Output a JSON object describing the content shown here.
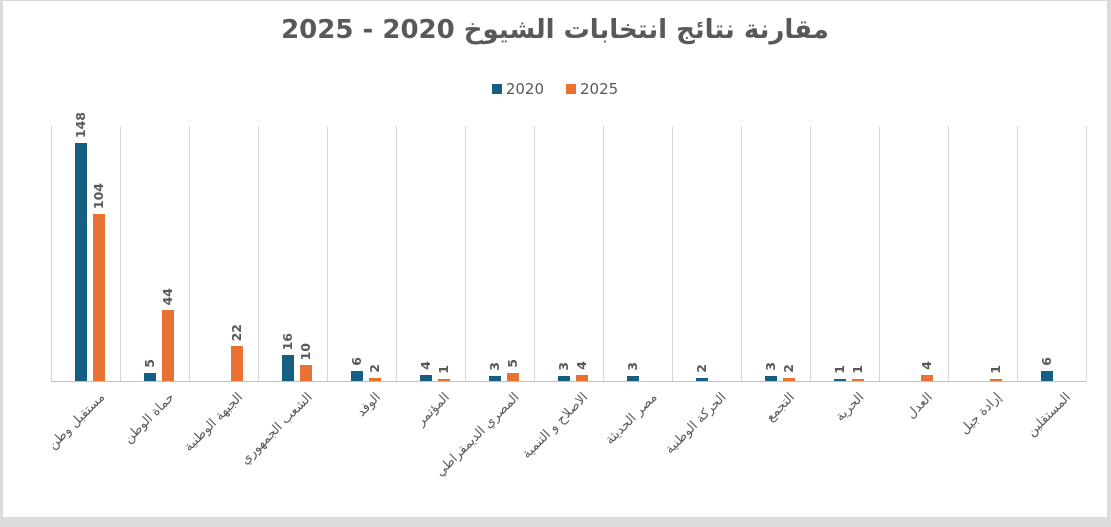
{
  "page": {
    "background_color": "#dcdcdc",
    "chart_border_color": "#d9d9d9",
    "chart_background_color": "#ffffff"
  },
  "title": {
    "text": "مقارنة نتائج انتخابات الشيوخ 2020 - 2025",
    "color": "#595959"
  },
  "legend": {
    "items": [
      {
        "label": "2020",
        "color": "#156082"
      },
      {
        "label": "2025",
        "color": "#E97132"
      }
    ],
    "position": "top-center"
  },
  "chart_data": {
    "type": "bar",
    "title": "مقارنة نتائج انتخابات الشيوخ 2020 - 2025",
    "categories": [
      "مستقبل وطن",
      "حماة الوطن",
      "الجبهة الوطنية",
      "الشعب الجمهوري",
      "الوفد",
      "المؤتمر",
      "المصري الديمقراطي",
      "الاصلاح و التنمية",
      "مصر الحديثة",
      "الحركة الوطنية",
      "التجمع",
      "الحرية",
      "العدل",
      "إرادة جيل",
      "المستقلين"
    ],
    "series": [
      {
        "name": "2020",
        "color": "#156082",
        "values": [
          148,
          5,
          0,
          16,
          6,
          4,
          3,
          3,
          3,
          2,
          3,
          1,
          0,
          0,
          6
        ]
      },
      {
        "name": "2025",
        "color": "#E97132",
        "values": [
          104,
          44,
          22,
          10,
          2,
          1,
          5,
          4,
          0,
          0,
          2,
          1,
          4,
          1,
          0
        ]
      }
    ],
    "xlabel": "",
    "ylabel": "",
    "ylim": [
      0,
      160
    ],
    "y_axis_ticks_visible": false,
    "gridlines": "vertical category separators only",
    "data_labels": "above bars, rotated 90°, hidden when value is 0",
    "category_labels": "rotated 45°",
    "legend_position": "top-center",
    "label_color": "#595959",
    "gridline_color": "#d9d9d9",
    "axis_line_color": "#bfbfbf"
  }
}
